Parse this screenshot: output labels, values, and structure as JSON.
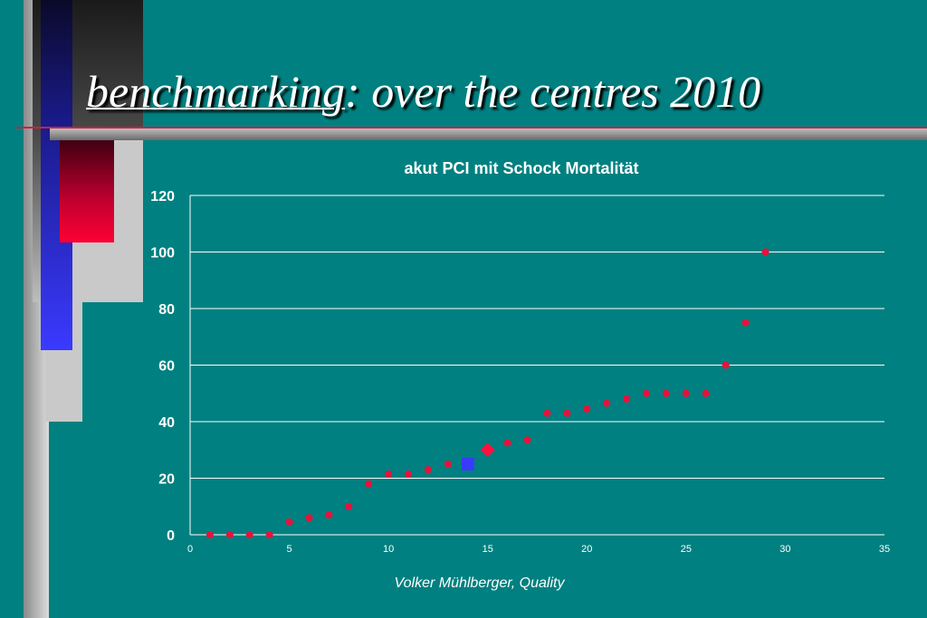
{
  "title": {
    "keyword": "benchmarking",
    "rest": ": over the centres 2010"
  },
  "footer": "Volker Mühlberger, Quality",
  "colors": {
    "background": "#008080",
    "point": "#e8113a",
    "highlight_square": "#3a3aff",
    "highlight_diamond": "#ff1040"
  },
  "chart_data": {
    "type": "scatter",
    "title": "akut PCI mit Schock Mortalität",
    "xlabel": "",
    "ylabel": "",
    "xlim": [
      0,
      35
    ],
    "ylim": [
      0,
      120
    ],
    "x_ticks": [
      0,
      5,
      10,
      15,
      20,
      25,
      30,
      35
    ],
    "y_ticks": [
      0,
      20,
      40,
      60,
      80,
      100,
      120
    ],
    "grid": "horizontal",
    "legend": "none",
    "points": [
      {
        "x": 1,
        "y": 0
      },
      {
        "x": 2,
        "y": 0
      },
      {
        "x": 3,
        "y": 0
      },
      {
        "x": 4,
        "y": 0
      },
      {
        "x": 5,
        "y": 4.5
      },
      {
        "x": 6,
        "y": 6
      },
      {
        "x": 7,
        "y": 7
      },
      {
        "x": 8,
        "y": 10
      },
      {
        "x": 9,
        "y": 18
      },
      {
        "x": 10,
        "y": 21.5
      },
      {
        "x": 11,
        "y": 21.5
      },
      {
        "x": 12,
        "y": 23
      },
      {
        "x": 13,
        "y": 25
      },
      {
        "x": 16,
        "y": 32.5
      },
      {
        "x": 17,
        "y": 33.5
      },
      {
        "x": 18,
        "y": 43
      },
      {
        "x": 19,
        "y": 43
      },
      {
        "x": 20,
        "y": 44.5
      },
      {
        "x": 21,
        "y": 46.5
      },
      {
        "x": 22,
        "y": 48
      },
      {
        "x": 23,
        "y": 50
      },
      {
        "x": 24,
        "y": 50
      },
      {
        "x": 25,
        "y": 50
      },
      {
        "x": 26,
        "y": 50
      },
      {
        "x": 27,
        "y": 60
      },
      {
        "x": 28,
        "y": 75
      },
      {
        "x": 29,
        "y": 100
      }
    ],
    "highlights": [
      {
        "x": 14,
        "y": 25,
        "marker": "square"
      },
      {
        "x": 15,
        "y": 30,
        "marker": "diamond"
      }
    ]
  }
}
